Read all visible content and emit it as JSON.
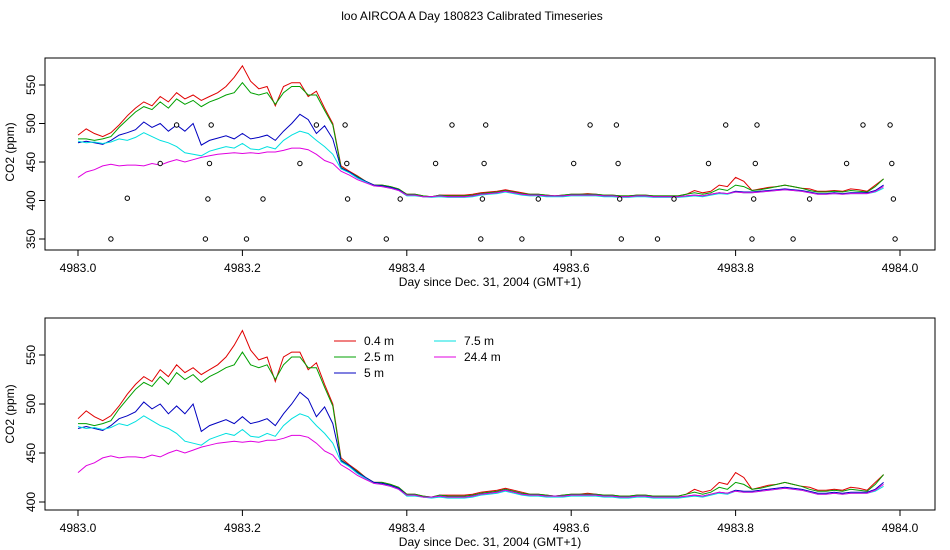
{
  "figure": {
    "title": "loo AIRCOA A  Day 180823  Calibrated Timeseries"
  },
  "colors": {
    "0.4 m": "#e00000",
    "2.5 m": "#00a000",
    "5 m": "#0000c0",
    "7.5 m": "#00e0e0",
    "24.4 m": "#e000e0",
    "points": "#000000"
  },
  "chart_data": [
    {
      "type": "line",
      "title": "",
      "xlabel": "Day since Dec. 31, 2004 (GMT+1)",
      "ylabel": "CO2 (ppm)",
      "xlim": [
        4983.0,
        4984.0
      ],
      "ylim": [
        340,
        580
      ],
      "xticks": [
        "4983.0",
        "4983.2",
        "4983.4",
        "4983.6",
        "4983.8",
        "4984.0"
      ],
      "xtick_values": [
        4983.0,
        4983.2,
        4983.4,
        4983.6,
        4983.8,
        4984.0
      ],
      "yticks": [
        "350",
        "400",
        "450",
        "500",
        "550"
      ],
      "ytick_values": [
        350,
        400,
        450,
        500,
        550
      ],
      "grid": false,
      "legend": "none",
      "x": [
        4983.0,
        4983.01,
        4983.02,
        4983.03,
        4983.04,
        4983.05,
        4983.06,
        4983.07,
        4983.08,
        4983.09,
        4983.1,
        4983.11,
        4983.12,
        4983.13,
        4983.14,
        4983.15,
        4983.16,
        4983.17,
        4983.18,
        4983.19,
        4983.2,
        4983.21,
        4983.22,
        4983.23,
        4983.24,
        4983.25,
        4983.26,
        4983.27,
        4983.28,
        4983.29,
        4983.3,
        4983.31,
        4983.32,
        4983.33,
        4983.34,
        4983.35,
        4983.36,
        4983.37,
        4983.38,
        4983.39,
        4983.4,
        4983.41,
        4983.42,
        4983.43,
        4983.44,
        4983.45,
        4983.46,
        4983.47,
        4983.48,
        4983.49,
        4983.5,
        4983.51,
        4983.52,
        4983.53,
        4983.54,
        4983.55,
        4983.56,
        4983.57,
        4983.58,
        4983.59,
        4983.6,
        4983.61,
        4983.62,
        4983.63,
        4983.64,
        4983.65,
        4983.66,
        4983.67,
        4983.68,
        4983.69,
        4983.7,
        4983.71,
        4983.72,
        4983.73,
        4983.74,
        4983.75,
        4983.76,
        4983.77,
        4983.78,
        4983.79,
        4983.8,
        4983.81,
        4983.82,
        4983.83,
        4983.84,
        4983.85,
        4983.86,
        4983.87,
        4983.88,
        4983.89,
        4983.9,
        4983.91,
        4983.92,
        4983.93,
        4983.94,
        4983.95,
        4983.96,
        4983.97,
        4983.98
      ],
      "series": [
        {
          "name": "0.4 m",
          "values": [
            485,
            493,
            487,
            483,
            488,
            498,
            510,
            520,
            528,
            523,
            535,
            528,
            540,
            532,
            537,
            530,
            535,
            540,
            548,
            560,
            575,
            555,
            545,
            548,
            523,
            548,
            553,
            553,
            535,
            542,
            520,
            500,
            445,
            438,
            432,
            425,
            420,
            420,
            418,
            415,
            408,
            408,
            406,
            405,
            407,
            407,
            407,
            407,
            408,
            410,
            411,
            412,
            414,
            412,
            410,
            408,
            408,
            407,
            406,
            407,
            408,
            408,
            409,
            408,
            407,
            407,
            406,
            406,
            407,
            407,
            406,
            406,
            406,
            406,
            408,
            413,
            410,
            412,
            420,
            418,
            430,
            425,
            413,
            415,
            417,
            418,
            420,
            418,
            416,
            415,
            412,
            412,
            413,
            412,
            415,
            414,
            412,
            420,
            428
          ]
        },
        {
          "name": "2.5 m",
          "values": [
            480,
            480,
            478,
            480,
            483,
            495,
            505,
            515,
            522,
            518,
            528,
            520,
            532,
            525,
            530,
            522,
            528,
            532,
            537,
            540,
            553,
            540,
            537,
            540,
            525,
            540,
            548,
            548,
            537,
            537,
            517,
            498,
            443,
            437,
            431,
            425,
            420,
            420,
            418,
            415,
            408,
            408,
            406,
            405,
            407,
            406,
            406,
            406,
            407,
            409,
            410,
            411,
            413,
            411,
            409,
            408,
            408,
            407,
            406,
            407,
            408,
            408,
            408,
            408,
            407,
            407,
            406,
            406,
            407,
            407,
            406,
            406,
            406,
            406,
            408,
            410,
            408,
            410,
            415,
            413,
            420,
            418,
            413,
            414,
            416,
            418,
            420,
            418,
            416,
            413,
            411,
            411,
            412,
            411,
            413,
            412,
            411,
            418,
            428
          ]
        },
        {
          "name": "5 m",
          "values": [
            475,
            477,
            475,
            473,
            478,
            485,
            488,
            492,
            502,
            495,
            500,
            490,
            498,
            490,
            500,
            472,
            478,
            481,
            484,
            480,
            487,
            480,
            482,
            485,
            478,
            490,
            500,
            512,
            505,
            487,
            497,
            480,
            442,
            437,
            430,
            425,
            420,
            419,
            417,
            414,
            407,
            407,
            405,
            405,
            406,
            405,
            405,
            405,
            406,
            408,
            409,
            410,
            412,
            410,
            408,
            407,
            407,
            406,
            406,
            406,
            407,
            407,
            407,
            407,
            406,
            406,
            405,
            405,
            406,
            406,
            405,
            405,
            405,
            405,
            406,
            407,
            406,
            408,
            410,
            409,
            412,
            411,
            411,
            412,
            413,
            414,
            415,
            414,
            413,
            411,
            409,
            409,
            410,
            409,
            410,
            410,
            410,
            413,
            420
          ]
        },
        {
          "name": "7.5 m",
          "values": [
            477,
            475,
            476,
            474,
            476,
            480,
            478,
            482,
            488,
            483,
            478,
            475,
            470,
            462,
            460,
            458,
            464,
            467,
            470,
            468,
            474,
            467,
            466,
            470,
            467,
            478,
            485,
            490,
            487,
            478,
            470,
            460,
            441,
            436,
            429,
            424,
            419,
            418,
            416,
            413,
            406,
            406,
            405,
            404,
            405,
            404,
            404,
            404,
            405,
            407,
            408,
            409,
            411,
            409,
            407,
            406,
            406,
            405,
            405,
            405,
            406,
            406,
            406,
            406,
            405,
            405,
            404,
            404,
            405,
            405,
            404,
            404,
            404,
            404,
            405,
            406,
            405,
            407,
            409,
            408,
            411,
            410,
            410,
            411,
            412,
            413,
            414,
            413,
            412,
            410,
            408,
            408,
            409,
            408,
            409,
            409,
            409,
            411,
            416
          ]
        },
        {
          "name": "24.4 m",
          "values": [
            430,
            437,
            440,
            445,
            447,
            445,
            446,
            446,
            445,
            448,
            446,
            450,
            453,
            450,
            453,
            456,
            458,
            460,
            461,
            462,
            461,
            462,
            461,
            463,
            463,
            465,
            468,
            468,
            466,
            460,
            452,
            448,
            438,
            433,
            427,
            423,
            419,
            418,
            416,
            413,
            407,
            407,
            405,
            405,
            406,
            405,
            405,
            405,
            406,
            408,
            409,
            410,
            412,
            410,
            408,
            407,
            407,
            406,
            406,
            406,
            407,
            407,
            407,
            407,
            406,
            406,
            405,
            405,
            406,
            406,
            405,
            405,
            405,
            405,
            406,
            407,
            406,
            408,
            410,
            409,
            411,
            410,
            410,
            411,
            412,
            413,
            414,
            413,
            412,
            410,
            408,
            408,
            409,
            408,
            409,
            409,
            409,
            412,
            418
          ]
        }
      ],
      "points": [
        {
          "x": 4983.04,
          "y": 350
        },
        {
          "x": 4983.06,
          "y": 403
        },
        {
          "x": 4983.1,
          "y": 448
        },
        {
          "x": 4983.12,
          "y": 498
        },
        {
          "x": 4983.155,
          "y": 350
        },
        {
          "x": 4983.158,
          "y": 402
        },
        {
          "x": 4983.16,
          "y": 448
        },
        {
          "x": 4983.162,
          "y": 498
        },
        {
          "x": 4983.205,
          "y": 350
        },
        {
          "x": 4983.225,
          "y": 402
        },
        {
          "x": 4983.27,
          "y": 448
        },
        {
          "x": 4983.29,
          "y": 498
        },
        {
          "x": 4983.325,
          "y": 498
        },
        {
          "x": 4983.327,
          "y": 448
        },
        {
          "x": 4983.328,
          "y": 402
        },
        {
          "x": 4983.33,
          "y": 350
        },
        {
          "x": 4983.375,
          "y": 350
        },
        {
          "x": 4983.392,
          "y": 402
        },
        {
          "x": 4983.435,
          "y": 448
        },
        {
          "x": 4983.455,
          "y": 498
        },
        {
          "x": 4983.49,
          "y": 350
        },
        {
          "x": 4983.492,
          "y": 402
        },
        {
          "x": 4983.494,
          "y": 448
        },
        {
          "x": 4983.496,
          "y": 498
        },
        {
          "x": 4983.54,
          "y": 350
        },
        {
          "x": 4983.56,
          "y": 402
        },
        {
          "x": 4983.603,
          "y": 448
        },
        {
          "x": 4983.623,
          "y": 498
        },
        {
          "x": 4983.655,
          "y": 498
        },
        {
          "x": 4983.657,
          "y": 448
        },
        {
          "x": 4983.659,
          "y": 402
        },
        {
          "x": 4983.661,
          "y": 350
        },
        {
          "x": 4983.705,
          "y": 350
        },
        {
          "x": 4983.725,
          "y": 402
        },
        {
          "x": 4983.767,
          "y": 448
        },
        {
          "x": 4983.788,
          "y": 498
        },
        {
          "x": 4983.82,
          "y": 350
        },
        {
          "x": 4983.822,
          "y": 402
        },
        {
          "x": 4983.824,
          "y": 448
        },
        {
          "x": 4983.826,
          "y": 498
        },
        {
          "x": 4983.87,
          "y": 350
        },
        {
          "x": 4983.89,
          "y": 402
        },
        {
          "x": 4983.935,
          "y": 448
        },
        {
          "x": 4983.955,
          "y": 498
        },
        {
          "x": 4983.988,
          "y": 498
        },
        {
          "x": 4983.99,
          "y": 448
        },
        {
          "x": 4983.992,
          "y": 402
        },
        {
          "x": 4983.994,
          "y": 350
        }
      ]
    },
    {
      "type": "line",
      "title": "",
      "xlabel": "Day since Dec. 31, 2004 (GMT+1)",
      "ylabel": "CO2 (ppm)",
      "xlim": [
        4983.0,
        4984.0
      ],
      "ylim": [
        398,
        580
      ],
      "xticks": [
        "4983.0",
        "4983.2",
        "4983.4",
        "4983.6",
        "4983.8",
        "4984.0"
      ],
      "xtick_values": [
        4983.0,
        4983.2,
        4983.4,
        4983.6,
        4983.8,
        4984.0
      ],
      "yticks": [
        "400",
        "450",
        "500",
        "550"
      ],
      "ytick_values": [
        400,
        450,
        500,
        550
      ],
      "grid": false,
      "legend": "top-left",
      "legend_entries": [
        "0.4 m",
        "2.5 m",
        "5 m",
        "7.5 m",
        "24.4 m"
      ],
      "series_ref": "same as first panel"
    }
  ]
}
